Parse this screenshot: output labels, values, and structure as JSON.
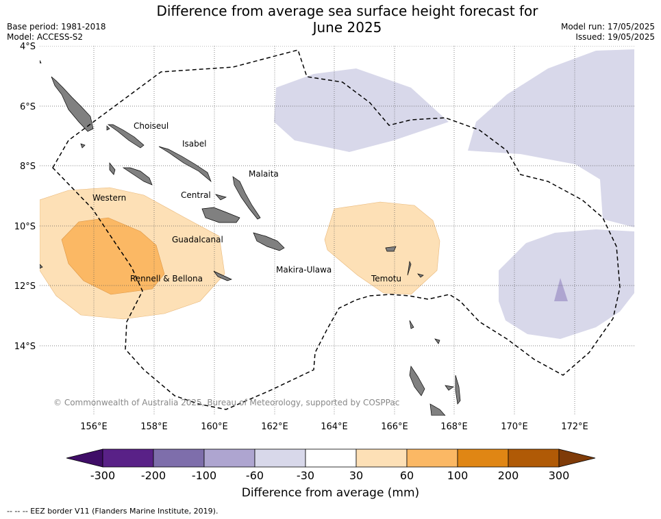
{
  "title_line1": "Difference from average sea surface height forecast for",
  "title_line2": "June 2025",
  "base_period": "Base period: 1981-2018",
  "model": "Model: ACCESS-S2",
  "model_run": "Model run: 17/05/2025",
  "issued": "Issued: 19/05/2025",
  "credit": "© Commonwealth of Australia 2025, Bureau of Meteorology, supported by COSPPac",
  "footer": "--  --  -- EEZ border V11 (Flanders Marine Institute, 2019).",
  "colorbar": {
    "label": "Difference from average (mm)",
    "ticks": [
      "-300",
      "-200",
      "-100",
      "-60",
      "-30",
      "30",
      "60",
      "100",
      "200",
      "300"
    ],
    "colors": [
      "#3f0d67",
      "#592187",
      "#7e6eab",
      "#aea5d0",
      "#d8d8ea",
      "#ffffff",
      "#fde0b6",
      "#fbb864",
      "#e08614",
      "#b05a06",
      "#7f3b08"
    ]
  },
  "axes": {
    "lat_labels": [
      "4°S",
      "6°S",
      "8°S",
      "10°S",
      "12°S",
      "14°S"
    ],
    "lon_labels": [
      "156°E",
      "158°E",
      "160°E",
      "162°E",
      "164°E",
      "166°E",
      "168°E",
      "170°E",
      "172°E"
    ]
  },
  "regions": [
    "Choiseul",
    "Isabel",
    "Malaita",
    "Western",
    "Central",
    "Guadalcanal",
    "Rennell & Bellona",
    "Makira-Ulawa",
    "Temotu"
  ],
  "colors": {
    "land": "#808080",
    "grid": "#555555"
  }
}
